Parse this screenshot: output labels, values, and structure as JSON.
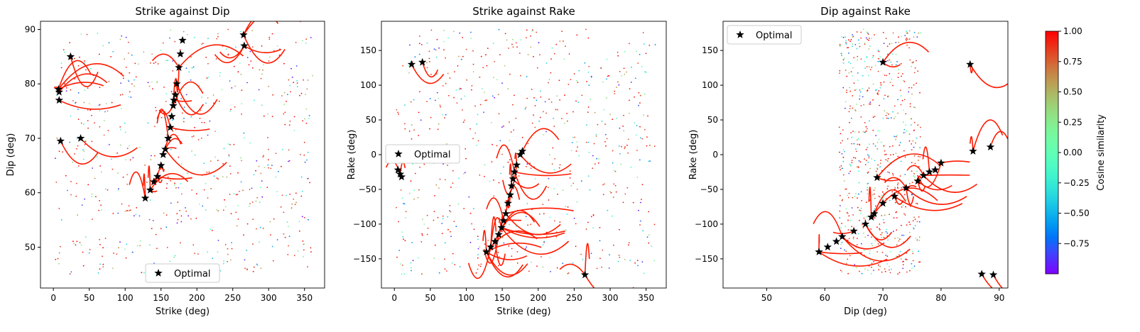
{
  "chart_data": [
    {
      "type": "scatter",
      "title": "Strike against Dip",
      "xlabel": "Strike (deg)",
      "ylabel": "Dip (deg)",
      "xlim": [
        -18,
        378
      ],
      "ylim": [
        42.5,
        91.5
      ],
      "xticks": [
        0,
        50,
        100,
        150,
        200,
        250,
        300,
        350
      ],
      "yticks": [
        50,
        60,
        70,
        80,
        90
      ],
      "legend": {
        "label": "Optimal",
        "position": "lower-center"
      },
      "optimal_points": [
        [
          7,
          79
        ],
        [
          8,
          78.5
        ],
        [
          8,
          77
        ],
        [
          10,
          69.5
        ],
        [
          24,
          85
        ],
        [
          38,
          70
        ],
        [
          128,
          59
        ],
        [
          135,
          60.5
        ],
        [
          140,
          62
        ],
        [
          145,
          63
        ],
        [
          150,
          65
        ],
        [
          153,
          67
        ],
        [
          156,
          68
        ],
        [
          160,
          70
        ],
        [
          163,
          72
        ],
        [
          165,
          74
        ],
        [
          167,
          76
        ],
        [
          168,
          77
        ],
        [
          170,
          78
        ],
        [
          172,
          80
        ],
        [
          175,
          83
        ],
        [
          177,
          85.5
        ],
        [
          180,
          88
        ],
        [
          265,
          89
        ],
        [
          266,
          87
        ]
      ]
    },
    {
      "type": "scatter",
      "title": "Strike against Rake",
      "xlabel": "Strike (deg)",
      "ylabel": "Rake (deg)",
      "xlim": [
        -18,
        378
      ],
      "ylim": [
        -192,
        192
      ],
      "xticks": [
        0,
        50,
        100,
        150,
        200,
        250,
        300,
        350
      ],
      "yticks": [
        -150,
        -100,
        -50,
        0,
        50,
        100,
        150
      ],
      "legend": {
        "label": "Optimal",
        "position": "center-left"
      },
      "optimal_points": [
        [
          24,
          130
        ],
        [
          39,
          133
        ],
        [
          5,
          -22
        ],
        [
          8,
          -28
        ],
        [
          10,
          -32
        ],
        [
          128,
          -140
        ],
        [
          134,
          -133
        ],
        [
          140,
          -125
        ],
        [
          145,
          -115
        ],
        [
          149,
          -105
        ],
        [
          152,
          -95
        ],
        [
          155,
          -85
        ],
        [
          158,
          -70
        ],
        [
          161,
          -58
        ],
        [
          163,
          -45
        ],
        [
          165,
          -35
        ],
        [
          167,
          -25
        ],
        [
          170,
          -15
        ],
        [
          175,
          0
        ],
        [
          178,
          5
        ],
        [
          265,
          -173
        ]
      ]
    },
    {
      "type": "scatter",
      "title": "Dip against Rake",
      "xlabel": "Dip (deg)",
      "ylabel": "Rake (deg)",
      "xlim": [
        42.5,
        91.5
      ],
      "ylim": [
        -192,
        192
      ],
      "xticks": [
        50,
        60,
        70,
        80,
        90
      ],
      "yticks": [
        -150,
        -100,
        -50,
        0,
        50,
        100,
        150
      ],
      "legend": {
        "label": "Optimal",
        "position": "top-left"
      },
      "optimal_points": [
        [
          59,
          -140
        ],
        [
          60.5,
          -133
        ],
        [
          62,
          -125
        ],
        [
          63,
          -118
        ],
        [
          65,
          -110
        ],
        [
          67,
          -100
        ],
        [
          68,
          -90
        ],
        [
          68.5,
          -85
        ],
        [
          69,
          -33
        ],
        [
          70,
          -70
        ],
        [
          72,
          -60
        ],
        [
          74,
          -48
        ],
        [
          76,
          -38
        ],
        [
          77,
          -30
        ],
        [
          78,
          -25
        ],
        [
          79,
          -22
        ],
        [
          80,
          -12
        ],
        [
          70,
          133
        ],
        [
          85,
          130
        ],
        [
          85.5,
          5
        ],
        [
          88.5,
          11
        ],
        [
          87,
          -172
        ],
        [
          89,
          -173
        ]
      ]
    }
  ],
  "colorbar": {
    "label": "Cosine similarity",
    "range": [
      -1.0,
      1.0
    ],
    "ticks": [
      "1.00",
      "0.75",
      "0.50",
      "0.25",
      "0.00",
      "−0.25",
      "−0.50",
      "−0.75"
    ],
    "tick_values": [
      1.0,
      0.75,
      0.5,
      0.25,
      0.0,
      -0.25,
      -0.5,
      -0.75
    ],
    "colormap": "rainbow"
  },
  "colors": {
    "high_similarity": "#ff0000",
    "optimal_marker": "#000000"
  }
}
